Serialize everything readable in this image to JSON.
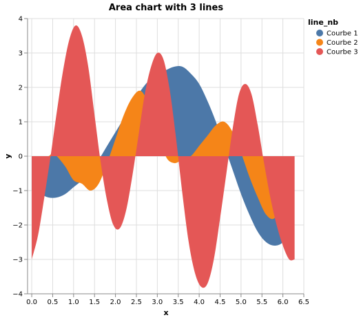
{
  "chart_data": {
    "type": "area",
    "title": "Area chart with 3 lines",
    "xlabel": "x",
    "ylabel": "y",
    "xlim": [
      -0.1,
      6.5
    ],
    "ylim": [
      -4,
      4
    ],
    "xticks": [
      0.0,
      0.5,
      1.0,
      1.5,
      2.0,
      2.5,
      3.0,
      3.5,
      4.0,
      4.5,
      5.0,
      5.5,
      6.0,
      6.5
    ],
    "xtick_labels": [
      "0.0",
      "0.5",
      "1.0",
      "1.5",
      "2.0",
      "2.5",
      "3.0",
      "3.5",
      "4.0",
      "4.5",
      "5.0",
      "5.5",
      "6.0",
      "6.5"
    ],
    "yticks": [
      -4,
      -3,
      -2,
      -1,
      0,
      1,
      2,
      3,
      4
    ],
    "ytick_labels": [
      "−4",
      "−3",
      "−2",
      "−1",
      "0",
      "1",
      "2",
      "3",
      "4"
    ],
    "grid": true,
    "legend": {
      "title": "line_nb",
      "placement": "top-right"
    },
    "series": [
      {
        "name": "Courbe 1",
        "color": "#4c78a8",
        "x": [
          0.0,
          0.2,
          0.4,
          0.6,
          0.8,
          1.0,
          1.2,
          1.4,
          1.6,
          1.8,
          2.0,
          2.2,
          2.4,
          2.6,
          2.8,
          3.0,
          3.2,
          3.4,
          3.6,
          3.8,
          4.0,
          4.2,
          4.4,
          4.6,
          4.8,
          5.0,
          5.2,
          5.4,
          5.6,
          5.8,
          6.0,
          6.2
        ],
        "y": [
          -1.0,
          -1.1,
          -1.2,
          -1.2,
          -1.1,
          -0.9,
          -0.7,
          -0.4,
          -0.1,
          0.3,
          0.7,
          1.1,
          1.5,
          1.9,
          2.2,
          2.4,
          2.5,
          2.6,
          2.6,
          2.4,
          2.1,
          1.6,
          1.0,
          0.3,
          -0.4,
          -1.1,
          -1.7,
          -2.2,
          -2.5,
          -2.6,
          -2.5,
          -2.1
        ]
      },
      {
        "name": "Courbe 2",
        "color": "#f58518",
        "x": [
          0.0,
          0.2,
          0.4,
          0.5,
          0.6,
          0.8,
          1.0,
          1.2,
          1.4,
          1.6,
          1.8,
          2.0,
          2.2,
          2.4,
          2.6,
          2.8,
          3.0,
          3.2,
          3.4,
          3.6,
          3.8,
          4.0,
          4.2,
          4.4,
          4.6,
          4.8,
          5.0,
          5.2,
          5.4,
          5.6,
          5.8,
          6.0,
          6.2
        ],
        "y": [
          0.0,
          0.0,
          0.0,
          0.1,
          0.0,
          -0.3,
          -0.7,
          -0.8,
          -1.0,
          -0.8,
          -0.2,
          0.5,
          1.2,
          1.7,
          1.9,
          1.5,
          0.8,
          0.0,
          -0.2,
          -0.1,
          0.0,
          0.3,
          0.6,
          0.9,
          1.0,
          0.7,
          0.1,
          -0.6,
          -1.2,
          -1.7,
          -1.8,
          -1.3,
          -0.6
        ]
      },
      {
        "name": "Courbe 3",
        "color": "#e45756",
        "x": [
          0.0,
          0.15,
          0.3,
          0.45,
          0.6,
          0.75,
          0.9,
          1.05,
          1.2,
          1.35,
          1.5,
          1.65,
          1.8,
          1.95,
          2.1,
          2.25,
          2.4,
          2.55,
          2.7,
          2.85,
          3.0,
          3.15,
          3.3,
          3.45,
          3.6,
          3.75,
          3.9,
          4.05,
          4.2,
          4.35,
          4.5,
          4.65,
          4.8,
          4.95,
          5.1,
          5.25,
          5.4,
          5.55,
          5.7,
          5.85,
          6.0,
          6.15,
          6.28
        ],
        "y": [
          -3.0,
          -2.3,
          -1.2,
          0.0,
          1.3,
          2.5,
          3.4,
          3.8,
          3.5,
          2.6,
          1.2,
          -0.2,
          -1.3,
          -2.0,
          -2.1,
          -1.6,
          -0.6,
          0.6,
          1.8,
          2.6,
          3.0,
          2.8,
          1.9,
          0.5,
          -1.1,
          -2.5,
          -3.4,
          -3.8,
          -3.7,
          -3.0,
          -1.8,
          -0.5,
          0.8,
          1.8,
          2.1,
          1.8,
          0.9,
          -0.2,
          -1.2,
          -2.0,
          -2.6,
          -3.0,
          -3.0
        ]
      }
    ]
  }
}
